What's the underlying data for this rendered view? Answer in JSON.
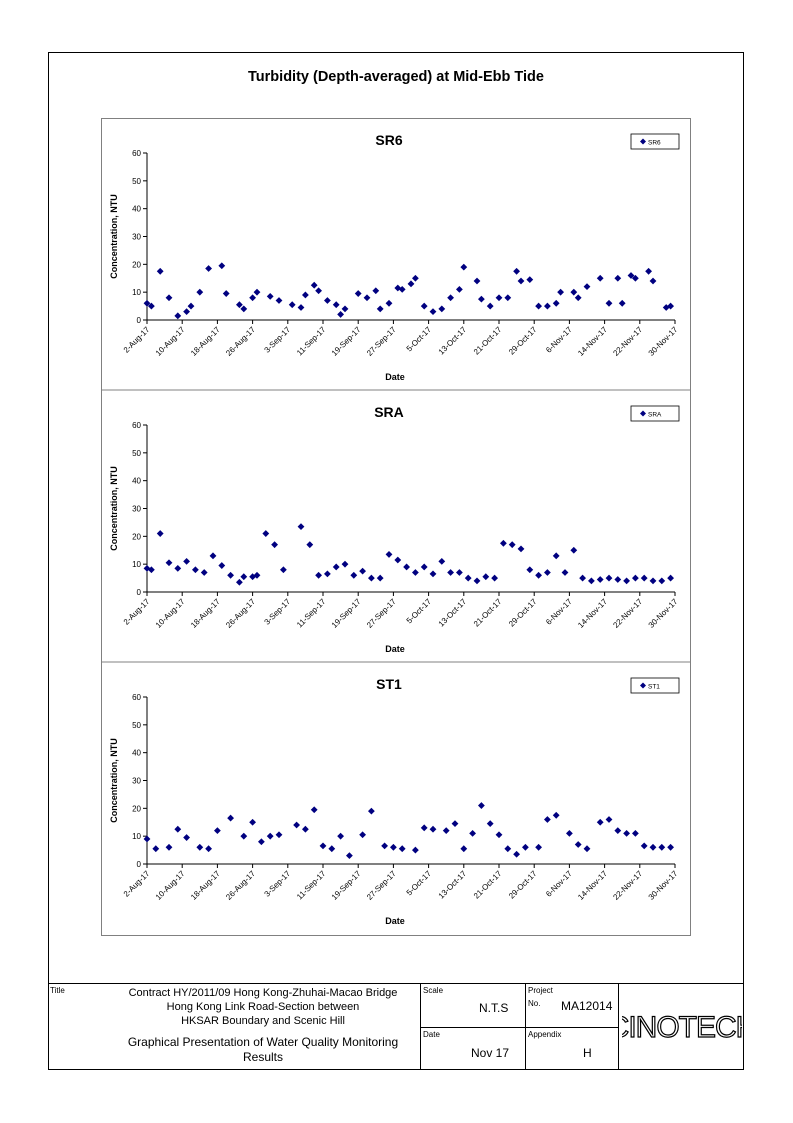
{
  "page_title": "Turbidity (Depth-averaged) at Mid-Ebb Tide",
  "chart_data": [
    {
      "type": "scatter",
      "title": "SR6",
      "xlabel": "Date",
      "ylabel": "Concentration, NTU",
      "ylim": [
        0,
        60
      ],
      "yticks": [
        0,
        10,
        20,
        30,
        40,
        50,
        60
      ],
      "xlim": [
        "2017-08-02",
        "2017-11-30"
      ],
      "xtick_labels": [
        "2-Aug-17",
        "10-Aug-17",
        "18-Aug-17",
        "26-Aug-17",
        "3-Sep-17",
        "11-Sep-17",
        "19-Sep-17",
        "27-Sep-17",
        "5-Oct-17",
        "13-Oct-17",
        "21-Oct-17",
        "29-Oct-17",
        "6-Nov-17",
        "14-Nov-17",
        "22-Nov-17",
        "30-Nov-17"
      ],
      "legend": "top-right",
      "series": [
        {
          "name": "SR6",
          "color": "#000080",
          "marker": "diamond",
          "x": [
            "2017-08-02",
            "2017-08-03",
            "2017-08-05",
            "2017-08-07",
            "2017-08-09",
            "2017-08-11",
            "2017-08-12",
            "2017-08-14",
            "2017-08-16",
            "2017-08-19",
            "2017-08-20",
            "2017-08-23",
            "2017-08-24",
            "2017-08-26",
            "2017-08-27",
            "2017-08-30",
            "2017-09-01",
            "2017-09-04",
            "2017-09-06",
            "2017-09-07",
            "2017-09-09",
            "2017-09-10",
            "2017-09-12",
            "2017-09-14",
            "2017-09-15",
            "2017-09-16",
            "2017-09-19",
            "2017-09-21",
            "2017-09-23",
            "2017-09-24",
            "2017-09-26",
            "2017-09-28",
            "2017-09-29",
            "2017-10-01",
            "2017-10-02",
            "2017-10-04",
            "2017-10-06",
            "2017-10-08",
            "2017-10-10",
            "2017-10-12",
            "2017-10-13",
            "2017-10-16",
            "2017-10-17",
            "2017-10-19",
            "2017-10-21",
            "2017-10-23",
            "2017-10-25",
            "2017-10-26",
            "2017-10-28",
            "2017-10-30",
            "2017-11-01",
            "2017-11-03",
            "2017-11-04",
            "2017-11-07",
            "2017-11-08",
            "2017-11-10",
            "2017-11-13",
            "2017-11-15",
            "2017-11-17",
            "2017-11-18",
            "2017-11-20",
            "2017-11-21",
            "2017-11-24",
            "2017-11-25",
            "2017-11-28",
            "2017-11-29"
          ],
          "y": [
            6,
            5,
            17.5,
            8,
            1.5,
            3,
            5,
            10,
            18.5,
            19.5,
            9.5,
            5.5,
            4,
            8,
            10,
            8.5,
            7,
            5.5,
            4.5,
            9,
            12.5,
            10.5,
            7,
            5.5,
            2,
            4,
            9.5,
            8,
            10.5,
            4,
            6,
            11.5,
            11,
            13,
            15,
            5,
            3,
            4,
            8,
            11,
            19,
            14,
            7.5,
            5,
            8,
            8,
            17.5,
            14,
            14.5,
            5,
            5,
            6,
            10,
            10,
            8,
            12,
            15,
            6,
            15,
            6,
            16,
            15,
            17.5,
            14,
            4.5,
            5
          ]
        }
      ]
    },
    {
      "type": "scatter",
      "title": "SRA",
      "xlabel": "Date",
      "ylabel": "Concentration, NTU",
      "ylim": [
        0,
        60
      ],
      "yticks": [
        0,
        10,
        20,
        30,
        40,
        50,
        60
      ],
      "xlim": [
        "2017-08-02",
        "2017-11-30"
      ],
      "xtick_labels": [
        "2-Aug-17",
        "10-Aug-17",
        "18-Aug-17",
        "26-Aug-17",
        "3-Sep-17",
        "11-Sep-17",
        "19-Sep-17",
        "27-Sep-17",
        "5-Oct-17",
        "13-Oct-17",
        "21-Oct-17",
        "29-Oct-17",
        "6-Nov-17",
        "14-Nov-17",
        "22-Nov-17",
        "30-Nov-17"
      ],
      "legend": "top-right",
      "series": [
        {
          "name": "SRA",
          "color": "#000080",
          "marker": "diamond",
          "x": [
            "2017-08-02",
            "2017-08-03",
            "2017-08-05",
            "2017-08-07",
            "2017-08-09",
            "2017-08-11",
            "2017-08-13",
            "2017-08-15",
            "2017-08-17",
            "2017-08-19",
            "2017-08-21",
            "2017-08-23",
            "2017-08-24",
            "2017-08-26",
            "2017-08-27",
            "2017-08-29",
            "2017-08-31",
            "2017-09-02",
            "2017-09-06",
            "2017-09-08",
            "2017-09-10",
            "2017-09-12",
            "2017-09-14",
            "2017-09-16",
            "2017-09-18",
            "2017-09-20",
            "2017-09-22",
            "2017-09-24",
            "2017-09-26",
            "2017-09-28",
            "2017-09-30",
            "2017-10-02",
            "2017-10-04",
            "2017-10-06",
            "2017-10-08",
            "2017-10-10",
            "2017-10-12",
            "2017-10-14",
            "2017-10-16",
            "2017-10-18",
            "2017-10-20",
            "2017-10-22",
            "2017-10-24",
            "2017-10-26",
            "2017-10-28",
            "2017-10-30",
            "2017-11-01",
            "2017-11-03",
            "2017-11-05",
            "2017-11-07",
            "2017-11-09",
            "2017-11-11",
            "2017-11-13",
            "2017-11-15",
            "2017-11-17",
            "2017-11-19",
            "2017-11-21",
            "2017-11-23",
            "2017-11-25",
            "2017-11-27",
            "2017-11-29"
          ],
          "y": [
            8.5,
            8,
            21,
            10.5,
            8.5,
            11,
            8,
            7,
            13,
            9.5,
            6,
            3.5,
            5.5,
            5.5,
            6,
            21,
            17,
            8,
            23.5,
            17,
            6,
            6.5,
            9,
            10,
            6,
            7.5,
            5,
            5,
            13.5,
            11.5,
            9,
            7,
            9,
            6.5,
            11,
            7,
            7,
            5,
            4,
            5.5,
            5,
            17.5,
            17,
            15.5,
            8,
            6,
            7,
            13,
            7,
            15,
            5,
            4,
            4.5,
            5,
            4.5,
            4,
            5,
            5,
            4,
            4,
            5
          ]
        }
      ]
    },
    {
      "type": "scatter",
      "title": "ST1",
      "xlabel": "Date",
      "ylabel": "Concentration, NTU",
      "ylim": [
        0,
        60
      ],
      "yticks": [
        0,
        10,
        20,
        30,
        40,
        50,
        60
      ],
      "xlim": [
        "2017-08-02",
        "2017-11-30"
      ],
      "xtick_labels": [
        "2-Aug-17",
        "10-Aug-17",
        "18-Aug-17",
        "26-Aug-17",
        "3-Sep-17",
        "11-Sep-17",
        "19-Sep-17",
        "27-Sep-17",
        "5-Oct-17",
        "13-Oct-17",
        "21-Oct-17",
        "29-Oct-17",
        "6-Nov-17",
        "14-Nov-17",
        "22-Nov-17",
        "30-Nov-17"
      ],
      "legend": "top-right",
      "series": [
        {
          "name": "ST1",
          "color": "#000080",
          "marker": "diamond",
          "x": [
            "2017-08-02",
            "2017-08-04",
            "2017-08-07",
            "2017-08-09",
            "2017-08-11",
            "2017-08-14",
            "2017-08-16",
            "2017-08-18",
            "2017-08-21",
            "2017-08-24",
            "2017-08-26",
            "2017-08-28",
            "2017-08-30",
            "2017-09-01",
            "2017-09-05",
            "2017-09-07",
            "2017-09-09",
            "2017-09-11",
            "2017-09-13",
            "2017-09-15",
            "2017-09-17",
            "2017-09-20",
            "2017-09-22",
            "2017-09-25",
            "2017-09-27",
            "2017-09-29",
            "2017-10-02",
            "2017-10-04",
            "2017-10-06",
            "2017-10-09",
            "2017-10-11",
            "2017-10-13",
            "2017-10-15",
            "2017-10-17",
            "2017-10-19",
            "2017-10-21",
            "2017-10-23",
            "2017-10-25",
            "2017-10-27",
            "2017-10-30",
            "2017-11-01",
            "2017-11-03",
            "2017-11-06",
            "2017-11-08",
            "2017-11-10",
            "2017-11-13",
            "2017-11-15",
            "2017-11-17",
            "2017-11-19",
            "2017-11-21",
            "2017-11-23",
            "2017-11-25",
            "2017-11-27",
            "2017-11-29"
          ],
          "y": [
            9,
            5.5,
            6,
            12.5,
            9.5,
            6,
            5.5,
            12,
            16.5,
            10,
            15,
            8,
            10,
            10.5,
            14,
            12.5,
            19.5,
            6.5,
            5.5,
            10,
            3,
            10.5,
            19,
            6.5,
            6,
            5.5,
            5,
            13,
            12.5,
            12,
            14.5,
            5.5,
            11,
            21,
            14.5,
            10.5,
            5.5,
            3.5,
            6,
            6,
            16,
            17.5,
            11,
            7,
            5.5,
            15,
            16,
            12,
            11,
            11,
            6.5,
            6,
            6,
            6
          ]
        }
      ]
    }
  ],
  "title_block": {
    "title_label": "Title",
    "title_lines": [
      "Contract HY/2011/09 Hong Kong-Zhuhai-Macao Bridge",
      "Hong Kong Link Road-Section between",
      "HKSAR Boundary and Scenic Hill"
    ],
    "subtitle_lines": [
      "Graphical Presentation of Water Quality Monitoring",
      "Results"
    ],
    "scale_label": "Scale",
    "scale_value": "N.T.S",
    "date_label": "Date",
    "date_value": "Nov 17",
    "project_label": "Project",
    "no_label": "No.",
    "project_value": "MA12014",
    "appendix_label": "Appendix",
    "appendix_value": "H",
    "logo_text": "CINOTECH"
  }
}
